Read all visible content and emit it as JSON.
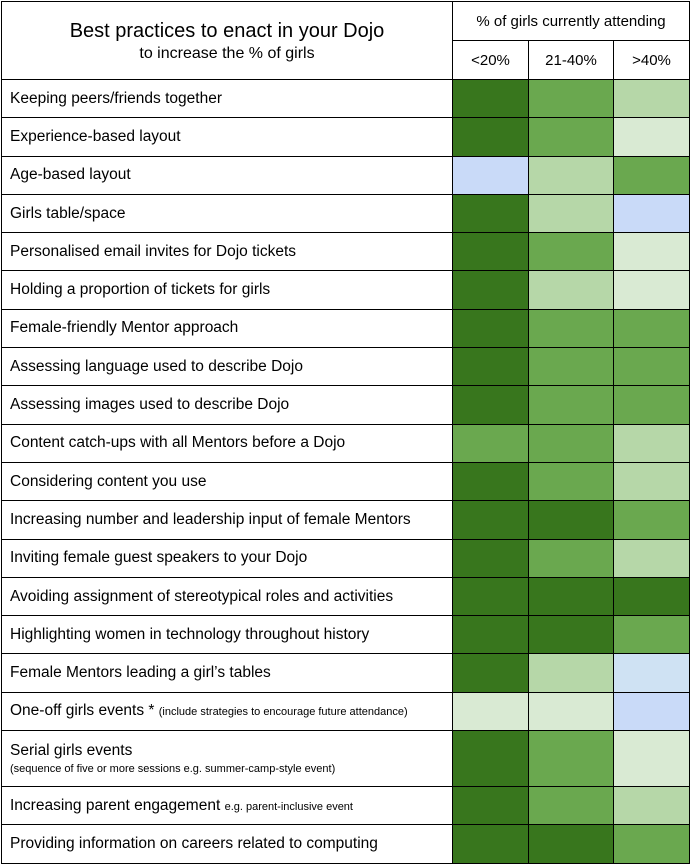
{
  "header": {
    "title": "Best practices to enact in your Dojo",
    "subtitle": "to increase the % of girls",
    "group_label": "% of girls currently attending",
    "columns": [
      "<20%",
      "21-40%",
      ">40%"
    ]
  },
  "colors": {
    "dark_green": "#38761d",
    "medium_green": "#6aa84f",
    "light_green": "#b6d7a8",
    "pale_green": "#d9ead3",
    "light_blue": "#c9daf8",
    "pale_blue": "#cfe2f3"
  },
  "rows": [
    {
      "label": "Keeping peers/friends together",
      "cells": [
        "dark_green",
        "medium_green",
        "light_green"
      ]
    },
    {
      "label": "Experience-based layout",
      "cells": [
        "dark_green",
        "medium_green",
        "pale_green"
      ]
    },
    {
      "label": "Age-based layout",
      "cells": [
        "light_blue",
        "light_green",
        "medium_green"
      ]
    },
    {
      "label": "Girls table/space",
      "cells": [
        "dark_green",
        "light_green",
        "light_blue"
      ]
    },
    {
      "label": "Personalised email invites for Dojo tickets",
      "cells": [
        "dark_green",
        "medium_green",
        "pale_green"
      ]
    },
    {
      "label": "Holding a proportion of tickets for girls",
      "cells": [
        "dark_green",
        "light_green",
        "pale_green"
      ]
    },
    {
      "label": "Female-friendly Mentor approach",
      "cells": [
        "dark_green",
        "medium_green",
        "medium_green"
      ]
    },
    {
      "label": "Assessing language used to describe Dojo",
      "cells": [
        "dark_green",
        "medium_green",
        "medium_green"
      ]
    },
    {
      "label": "Assessing images used to describe Dojo",
      "cells": [
        "dark_green",
        "medium_green",
        "medium_green"
      ]
    },
    {
      "label": "Content catch-ups with all Mentors before a Dojo",
      "cells": [
        "medium_green",
        "medium_green",
        "light_green"
      ]
    },
    {
      "label": "Considering content you use",
      "cells": [
        "dark_green",
        "medium_green",
        "light_green"
      ]
    },
    {
      "label": "Increasing number and leadership input of female Mentors",
      "cells": [
        "dark_green",
        "dark_green",
        "medium_green"
      ]
    },
    {
      "label": "Inviting female guest speakers to your Dojo",
      "cells": [
        "dark_green",
        "medium_green",
        "light_green"
      ]
    },
    {
      "label": "Avoiding assignment of stereotypical roles and activities",
      "cells": [
        "dark_green",
        "dark_green",
        "dark_green"
      ]
    },
    {
      "label": "Highlighting women in technology throughout history",
      "cells": [
        "dark_green",
        "dark_green",
        "medium_green"
      ]
    },
    {
      "label": "Female Mentors leading a girl’s tables",
      "cells": [
        "dark_green",
        "light_green",
        "pale_blue"
      ]
    },
    {
      "label": "One-off girls events *",
      "note": "(include strategies to encourage future attendance)",
      "cells": [
        "pale_green",
        "pale_green",
        "light_blue"
      ]
    },
    {
      "label": "Serial girls events",
      "sublabel": "(sequence of five or more sessions e.g. summer-camp-style event)",
      "cells": [
        "dark_green",
        "medium_green",
        "pale_green"
      ]
    },
    {
      "label": "Increasing parent engagement",
      "note": "e.g. parent-inclusive event",
      "cells": [
        "dark_green",
        "medium_green",
        "light_green"
      ]
    },
    {
      "label": "Providing information on careers related to computing",
      "cells": [
        "dark_green",
        "dark_green",
        "medium_green"
      ]
    }
  ]
}
